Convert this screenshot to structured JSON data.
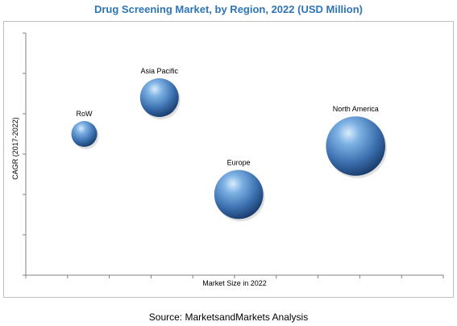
{
  "chart_data": {
    "type": "bubble",
    "title": "Drug Screening Market, by Region, 2022 (USD Million)",
    "xlabel": "Market Size in 2022",
    "ylabel": "CAGR (2017-2022)",
    "xlim": [
      0,
      10
    ],
    "ylim": [
      0,
      6
    ],
    "grid": false,
    "series": [
      {
        "name": "RoW",
        "x": 1.4,
        "y": 3.5,
        "size": 1.0
      },
      {
        "name": "Asia Pacific",
        "x": 3.2,
        "y": 4.4,
        "size": 1.5
      },
      {
        "name": "Europe",
        "x": 5.1,
        "y": 2.0,
        "size": 1.9
      },
      {
        "name": "North America",
        "x": 7.9,
        "y": 3.2,
        "size": 2.3
      }
    ],
    "colors": {
      "bubble_light": "#aed4f5",
      "bubble_mid": "#4f86c6",
      "bubble_dark": "#1b3f73",
      "title": "#2e75b6"
    }
  },
  "source": "Source: MarketsandMarkets Analysis"
}
